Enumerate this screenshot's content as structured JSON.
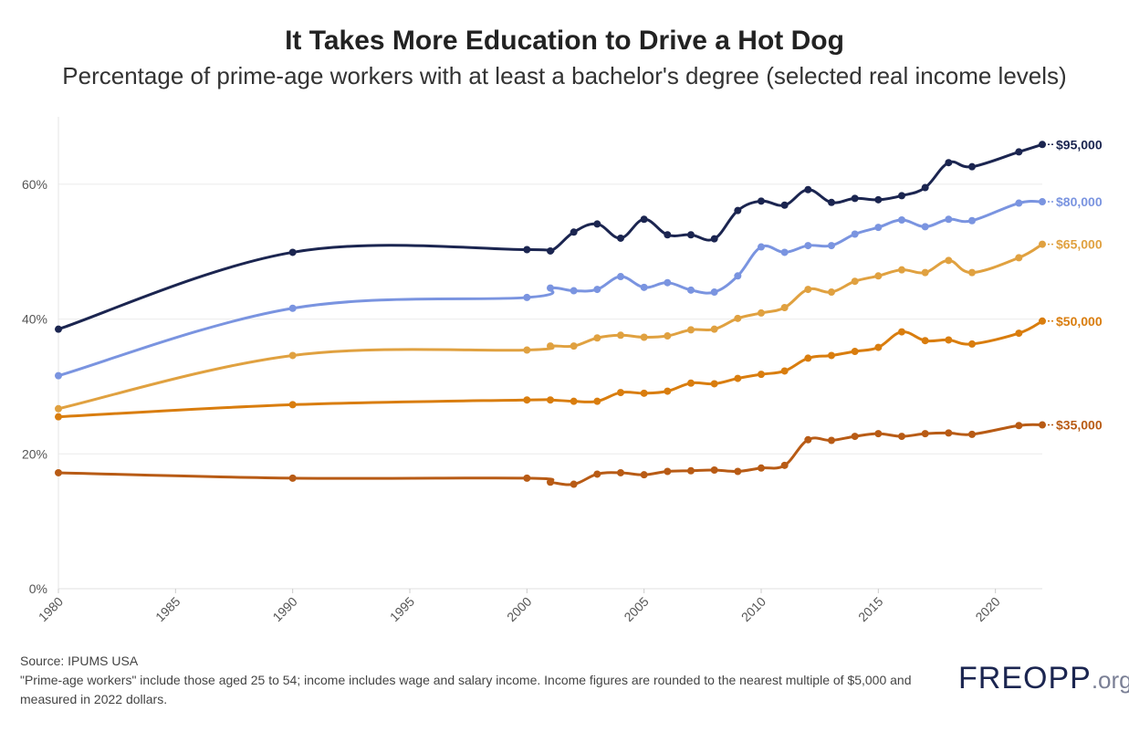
{
  "title": "It Takes More Education to Drive a Hot Dog",
  "subtitle": "Percentage of prime-age workers with at least a bachelor's degree (selected real income levels)",
  "footer": {
    "source": "Source: IPUMS USA",
    "note": "\"Prime-age workers\" include those aged 25 to 54; income includes wage and salary income. Income figures are rounded to the nearest multiple of $5,000 and measured in 2022 dollars."
  },
  "logo": {
    "main_left": "FRE",
    "mark": "O",
    "main_right": "PP",
    "suffix": ".org"
  },
  "chart_data": {
    "type": "line",
    "title": "It Takes More Education to Drive a Hot Dog",
    "xlabel": "",
    "ylabel": "",
    "xlim": [
      1980,
      2022
    ],
    "ylim": [
      0,
      70
    ],
    "x_ticks": [
      1980,
      1985,
      1990,
      1995,
      2000,
      2005,
      2010,
      2015,
      2020
    ],
    "y_ticks": [
      0,
      20,
      40,
      60
    ],
    "y_tick_labels": [
      "0%",
      "20%",
      "40%",
      "60%"
    ],
    "x": [
      1980,
      1990,
      2000,
      2001,
      2002,
      2003,
      2004,
      2005,
      2006,
      2007,
      2008,
      2009,
      2010,
      2011,
      2012,
      2013,
      2014,
      2015,
      2016,
      2017,
      2018,
      2019,
      2021,
      2022
    ],
    "series": [
      {
        "name": "$95,000",
        "color": "#1b2550",
        "values": [
          38.5,
          49.9,
          50.3,
          50.1,
          52.9,
          54.1,
          52.0,
          54.8,
          52.5,
          52.5,
          51.9,
          56.1,
          57.5,
          56.9,
          59.2,
          57.3,
          57.9,
          57.7,
          58.3,
          59.5,
          63.2,
          62.6,
          64.8,
          65.9
        ]
      },
      {
        "name": "$80,000",
        "color": "#7a94e0",
        "values": [
          31.6,
          41.6,
          43.2,
          44.6,
          44.2,
          44.4,
          46.3,
          44.7,
          45.4,
          44.3,
          44.0,
          46.4,
          50.7,
          49.9,
          50.9,
          50.9,
          52.6,
          53.6,
          54.7,
          53.7,
          54.8,
          54.6,
          57.2,
          57.4
        ]
      },
      {
        "name": "$65,000",
        "color": "#e0a140",
        "values": [
          26.7,
          34.6,
          35.4,
          36.0,
          36.0,
          37.2,
          37.6,
          37.3,
          37.5,
          38.4,
          38.5,
          40.1,
          40.9,
          41.7,
          44.4,
          44.0,
          45.6,
          46.4,
          47.3,
          46.9,
          48.7,
          46.9,
          49.1,
          51.1
        ]
      },
      {
        "name": "$50,000",
        "color": "#d97d0e",
        "values": [
          25.5,
          27.3,
          28.0,
          28.0,
          27.8,
          27.8,
          29.1,
          29.0,
          29.3,
          30.5,
          30.4,
          31.2,
          31.8,
          32.3,
          34.2,
          34.6,
          35.2,
          35.8,
          38.1,
          36.8,
          36.9,
          36.3,
          37.9,
          39.7
        ]
      },
      {
        "name": "$35,000",
        "color": "#b85b15",
        "values": [
          17.2,
          16.4,
          16.4,
          15.8,
          15.5,
          17.0,
          17.2,
          16.9,
          17.4,
          17.5,
          17.6,
          17.4,
          17.9,
          18.3,
          22.1,
          22.0,
          22.6,
          23.0,
          22.6,
          23.0,
          23.1,
          22.9,
          24.2,
          24.3
        ]
      }
    ],
    "legend": "direct-labels-right",
    "grid": true
  }
}
